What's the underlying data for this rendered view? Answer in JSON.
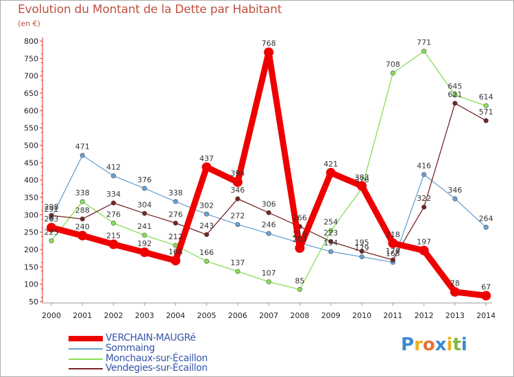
{
  "title": "Evolution du Montant de la Dette par Habitant",
  "subtitle": "(en €)",
  "logo": {
    "letters": [
      "P",
      "r",
      "o",
      "x",
      "i",
      "t",
      "i"
    ],
    "colors": [
      "#3a8ad0",
      "#e8b020",
      "#e87030",
      "#3a8ad0",
      "#e8b020",
      "#80b840",
      "#3a8ad0"
    ]
  },
  "chart_data": {
    "type": "line",
    "x": [
      "2000",
      "2001",
      "2002",
      "2003",
      "2004",
      "2005",
      "2006",
      "2007",
      "2008",
      "2009",
      "2010",
      "2011",
      "2012",
      "2013",
      "2014"
    ],
    "ylim": [
      50,
      800
    ],
    "yticks": [
      50,
      100,
      150,
      200,
      250,
      300,
      350,
      400,
      450,
      500,
      550,
      600,
      650,
      700,
      750,
      800
    ],
    "grid": false,
    "legend_position": "bottom-left",
    "series": [
      {
        "name": "VERCHAIN-MAUGRé",
        "color": "#ee0000",
        "width": "thick",
        "values": [
          263,
          240,
          215,
          192,
          168,
          437,
          394,
          768,
          204,
          421,
          383,
          218,
          197,
          78,
          67
        ]
      },
      {
        "name": "Sommaing",
        "color": "#6aa0d0",
        "width": "thin",
        "values": [
          291,
          471,
          412,
          376,
          338,
          302,
          272,
          246,
          219,
          194,
          179,
          163,
          416,
          346,
          264
        ]
      },
      {
        "name": "Monchaux-sur-Écaillon",
        "color": "#88dd55",
        "width": "thin",
        "values": [
          225,
          338,
          276,
          241,
          212,
          166,
          137,
          107,
          85,
          254,
          376,
          708,
          771,
          645,
          614
        ]
      },
      {
        "name": "Vendegies-sur-Écaillon",
        "color": "#772222",
        "width": "thin",
        "values": [
          298,
          288,
          334,
          304,
          276,
          243,
          346,
          306,
          266,
          223,
          195,
          170,
          322,
          621,
          571
        ]
      }
    ],
    "data_labels": [
      {
        "series": 0,
        "values": [
          "263",
          "240",
          "215",
          "192",
          "168",
          "437",
          "394",
          "768",
          "204",
          "421",
          "383",
          "218",
          "197",
          "78",
          "67"
        ]
      },
      {
        "series": 1,
        "values": [
          "291",
          "471",
          "412",
          "376",
          "338",
          "302",
          "272",
          "246",
          "219",
          "194",
          "179",
          "163",
          "416",
          "346",
          "264"
        ]
      },
      {
        "series": 2,
        "values": [
          "225",
          "338",
          "276",
          "241",
          "212",
          "166",
          "137",
          "107",
          "85",
          "254",
          "376",
          "708",
          "771",
          "645",
          "614"
        ]
      },
      {
        "series": 3,
        "values": [
          "298",
          "288",
          "334",
          "304",
          "276",
          "243",
          "346",
          "306",
          "266",
          "223",
          "195",
          "170",
          "322",
          "621",
          "571"
        ]
      }
    ]
  }
}
